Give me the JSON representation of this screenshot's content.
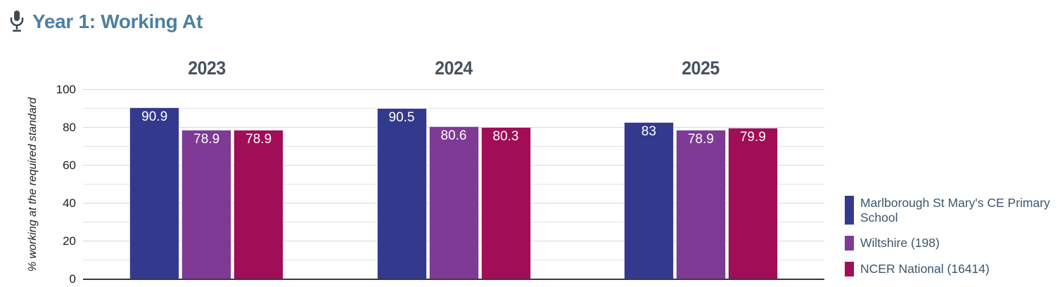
{
  "header": {
    "title": "Year 1: Working At",
    "icon": "microphone"
  },
  "chart_data": {
    "type": "bar",
    "title": "Year 1: Working At",
    "categories": [
      "2023",
      "2024",
      "2025"
    ],
    "series": [
      {
        "name": "Marlborough St Mary's CE Primary School",
        "color": "#333a8d",
        "values": [
          90.9,
          90.5,
          83
        ]
      },
      {
        "name": "Wiltshire (198)",
        "color": "#7e3a95",
        "values": [
          78.9,
          80.6,
          78.9
        ]
      },
      {
        "name": "NCER National (16414)",
        "color": "#a10d56",
        "values": [
          78.9,
          80.3,
          79.9
        ]
      }
    ],
    "ylabel": "% working at the required standard",
    "ylim": [
      0,
      100
    ],
    "yticks": [
      0,
      20,
      40,
      60,
      80,
      100
    ],
    "grid_minor_step": 10,
    "grid": true,
    "legend_position": "right",
    "value_labels": "inside-top"
  },
  "colors": {
    "title_text": "#4d80a1",
    "category_text": "#47525f",
    "axis_text": "#1d1d1d",
    "legend_text": "#3e566c",
    "gridline": "#e3e3e3",
    "axis_line": "#3a3a3a",
    "bar_border": "#ded7ec",
    "icon": "#3e4a55"
  }
}
